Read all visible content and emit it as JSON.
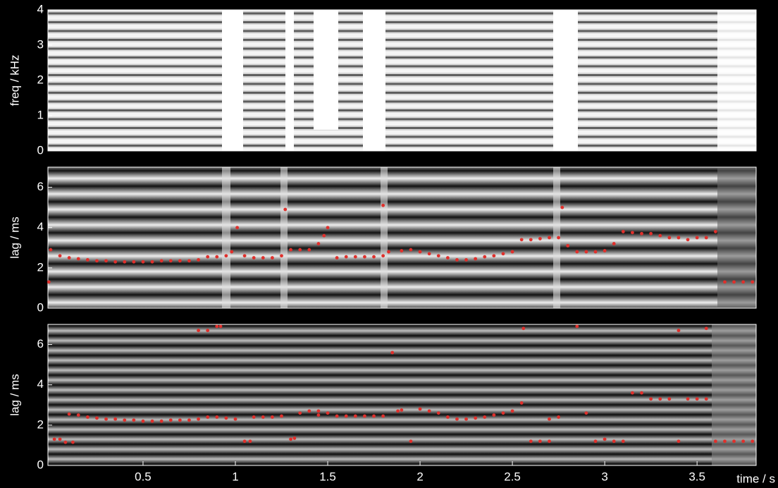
{
  "chart_data": [
    {
      "type": "image",
      "ylabel": "freq / kHz",
      "xlim": [
        -0.015,
        3.82
      ],
      "ylim": [
        0,
        4
      ],
      "yticks": [
        0,
        1,
        2,
        3,
        4
      ]
    },
    {
      "type": "scatter",
      "ylabel": "lag / ms",
      "xlim": [
        -0.015,
        3.82
      ],
      "ylim": [
        0,
        7
      ],
      "yticks": [
        0,
        2,
        4,
        6
      ],
      "series": [
        {
          "color": "#e0302c",
          "x": [
            -0.01,
            0.0,
            0.05,
            0.1,
            0.15,
            0.2,
            0.25,
            0.3,
            0.35,
            0.4,
            0.45,
            0.5,
            0.55,
            0.6,
            0.65,
            0.7,
            0.75,
            0.8,
            0.85,
            0.9,
            0.95,
            0.98,
            1.01,
            1.05,
            1.1,
            1.15,
            1.2,
            1.25,
            1.27,
            1.3,
            1.35,
            1.4,
            1.45,
            1.48,
            1.5,
            1.55,
            1.6,
            1.65,
            1.7,
            1.75,
            1.8,
            1.8,
            1.83,
            1.9,
            1.95,
            2.0,
            2.05,
            2.1,
            2.15,
            2.2,
            2.25,
            2.3,
            2.35,
            2.4,
            2.45,
            2.5,
            2.55,
            2.6,
            2.65,
            2.7,
            2.75,
            2.77,
            2.8,
            2.85,
            2.9,
            2.95,
            3.0,
            3.05,
            3.1,
            3.15,
            3.2,
            3.25,
            3.3,
            3.35,
            3.4,
            3.45,
            3.5,
            3.55,
            3.6,
            3.65,
            3.7,
            3.75,
            3.8
          ],
          "values": [
            1.3,
            2.9,
            2.6,
            2.5,
            2.45,
            2.4,
            2.35,
            2.35,
            2.3,
            2.3,
            2.3,
            2.3,
            2.3,
            2.35,
            2.35,
            2.35,
            2.35,
            2.4,
            2.55,
            2.55,
            2.6,
            2.8,
            4.0,
            2.6,
            2.5,
            2.5,
            2.5,
            2.6,
            4.9,
            2.9,
            2.9,
            2.9,
            3.2,
            3.6,
            4.0,
            2.5,
            2.55,
            2.55,
            2.55,
            2.55,
            2.6,
            5.1,
            2.8,
            2.85,
            2.9,
            2.8,
            2.7,
            2.6,
            2.5,
            2.4,
            2.4,
            2.45,
            2.55,
            2.6,
            2.7,
            2.8,
            3.4,
            3.4,
            3.45,
            3.5,
            3.5,
            5.0,
            3.1,
            2.8,
            2.8,
            2.8,
            2.85,
            3.2,
            3.8,
            3.75,
            3.7,
            3.7,
            3.6,
            3.5,
            3.5,
            3.4,
            3.5,
            3.5,
            3.8,
            1.3,
            1.3,
            1.3,
            1.3
          ]
        }
      ]
    },
    {
      "type": "scatter",
      "ylabel": "lag / ms",
      "xlabel": "time / s",
      "xlim": [
        -0.015,
        3.82
      ],
      "ylim": [
        0,
        7
      ],
      "yticks": [
        0,
        2,
        4,
        6
      ],
      "xticks": [
        0.5,
        1,
        1.5,
        2,
        2.5,
        3,
        3.5
      ],
      "series": [
        {
          "color": "#e0302c",
          "x": [
            0.02,
            0.05,
            0.08,
            0.12,
            0.1,
            0.15,
            0.2,
            0.25,
            0.3,
            0.35,
            0.4,
            0.45,
            0.5,
            0.55,
            0.6,
            0.65,
            0.7,
            0.75,
            0.8,
            0.8,
            0.85,
            0.9,
            0.92,
            0.85,
            0.9,
            0.95,
            1.0,
            1.05,
            1.08,
            1.1,
            1.15,
            1.2,
            1.25,
            1.3,
            1.32,
            1.35,
            1.4,
            1.45,
            1.5,
            1.45,
            1.55,
            1.6,
            1.65,
            1.7,
            1.75,
            1.8,
            1.85,
            1.88,
            1.95,
            1.9,
            2.0,
            2.05,
            2.1,
            2.15,
            2.2,
            2.25,
            2.3,
            2.35,
            2.4,
            2.45,
            2.5,
            2.55,
            2.56,
            2.6,
            2.65,
            2.7,
            2.7,
            2.75,
            2.85,
            2.9,
            2.95,
            3.0,
            3.05,
            3.1,
            3.15,
            3.2,
            3.25,
            3.3,
            3.35,
            3.4,
            3.45,
            3.5,
            3.55,
            3.4,
            3.55,
            3.6,
            3.65,
            3.7,
            3.75,
            3.8
          ],
          "values": [
            1.3,
            1.3,
            1.15,
            1.15,
            2.55,
            2.5,
            2.4,
            2.35,
            2.3,
            2.3,
            2.25,
            2.25,
            2.2,
            2.2,
            2.2,
            2.25,
            2.25,
            2.25,
            2.3,
            6.7,
            6.7,
            6.9,
            6.9,
            2.4,
            2.4,
            2.35,
            2.3,
            1.2,
            1.2,
            2.4,
            2.4,
            2.4,
            2.45,
            1.3,
            1.35,
            2.6,
            2.7,
            2.7,
            2.6,
            2.5,
            2.45,
            2.45,
            2.45,
            2.45,
            2.45,
            2.45,
            5.6,
            2.7,
            1.2,
            2.75,
            2.8,
            2.7,
            2.6,
            2.4,
            2.3,
            2.3,
            2.35,
            2.4,
            2.5,
            2.6,
            2.7,
            3.1,
            6.8,
            1.2,
            1.2,
            1.2,
            2.3,
            2.4,
            6.9,
            2.6,
            1.2,
            1.3,
            1.2,
            1.2,
            3.6,
            3.6,
            3.3,
            3.3,
            3.3,
            6.7,
            3.3,
            3.3,
            3.3,
            1.2,
            6.8,
            1.2,
            1.2,
            1.2,
            1.2,
            1.2
          ]
        }
      ]
    }
  ]
}
